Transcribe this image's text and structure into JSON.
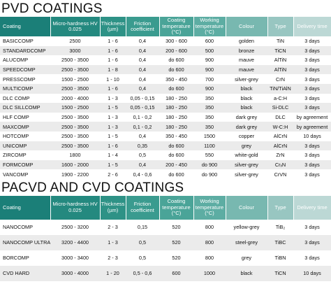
{
  "sections": [
    {
      "title": "PVD COATINGS",
      "header": [
        "Coating",
        "Micro-hardness HV 0.025",
        "Thickness (µm)",
        "Friction coefficient",
        "Coating temperature (°C)",
        "Working temperature (°C)",
        "Colour",
        "Type",
        "Delivery time"
      ],
      "rows": [
        [
          "BASICCOMP",
          "2500",
          "1 - 6",
          "0,4",
          "300 - 600",
          "600",
          "golden",
          "TiN",
          "3 days"
        ],
        [
          "STANDARDCOMP",
          "3000",
          "1 - 6",
          "0,4",
          "200 - 600",
          "500",
          "bronze",
          "TiCN",
          "3 days"
        ],
        [
          "ALUCOMP",
          "2500 - 3500",
          "1 - 6",
          "0,4",
          "do 600",
          "900",
          "mauve",
          "AlTiN",
          "3 days"
        ],
        [
          "SPEEDCOMP",
          "2500 - 3500",
          "1 - 8",
          "0,4",
          "do 600",
          "900",
          "mauve",
          "AlTiN",
          "3 days"
        ],
        [
          "PRESSCOMP",
          "1500 - 2500",
          "1 - 10",
          "0,4",
          "350 - 450",
          "700",
          "silver-grey",
          "CrN",
          "3 days"
        ],
        [
          "MULTICOMP",
          "2500 - 3500",
          "1 - 6",
          "0,4",
          "do 600",
          "900",
          "black",
          "TiN/TiAlN",
          "3 days"
        ],
        [
          "DLC COMP",
          "2000 - 4000",
          "1 - 3",
          "0,05 - 0,15",
          "180 - 250",
          "350",
          "black",
          "a-C:H",
          "3 days"
        ],
        [
          "DLC SILLCOMP",
          "1500 - 2500",
          "1 - 5",
          "0,05 - 0,15",
          "180 - 250",
          "350",
          "black",
          "Si-DLC",
          "3 days"
        ],
        [
          "HLF COMP",
          "2500 - 3500",
          "1 - 3",
          "0,1 - 0,2",
          "180 - 250",
          "350",
          "dark grey",
          "DLC",
          "by agreement"
        ],
        [
          "MAXCOMP",
          "2500 - 3500",
          "1 - 3",
          "0,1 - 0,2",
          "180 - 250",
          "350",
          "dark grey",
          "W-C:H",
          "by agreement"
        ],
        [
          "HOTCOMP",
          "2500 - 3500",
          "1 - 5",
          "0,4",
          "350 - 450",
          "1500",
          "copper",
          "AlCrN",
          "10 days"
        ],
        [
          "UNICOMP",
          "2500 - 3500",
          "1 - 6",
          "0,35",
          "do 600",
          "1100",
          "grey",
          "AlCrN",
          "3 days"
        ],
        [
          "ZIRCOMP",
          "1800",
          "1 - 4",
          "0,5",
          "do 600",
          "550",
          "white-gold",
          "ZrN",
          "3 days"
        ],
        [
          "FORMCOMP",
          "1600 - 2000",
          "1 - 5",
          "0,4",
          "200 - 450",
          "do 900",
          "silver-grey",
          "CrₓN",
          "3 days"
        ],
        [
          "VANCOMP",
          "1900 - 2200",
          "2 - 6",
          "0,4 - 0,6",
          "do 600",
          "do 900",
          "silver-grey",
          "CrVN",
          "3 days"
        ]
      ]
    },
    {
      "title": "PACVD AND CVD COATINGS",
      "header": [
        "Coating",
        "Micro-hardness HV 0.025",
        "Thickness (µm)",
        "Friction coefficient",
        "Coating temperature (°C)",
        "Working temperature (°C)",
        "Colour",
        "Type",
        "Delivery time"
      ],
      "rows": [
        [
          "NANOCOMP",
          "2500 - 3200",
          "2 - 3",
          "0,15",
          "520",
          "800",
          "yellow-grey",
          "TiB₂",
          "3 days"
        ],
        [
          "NANOCOMP ULTRA",
          "3200 - 4400",
          "1 - 3",
          "0,5",
          "520",
          "800",
          "steel-grey",
          "TiBC",
          "3 days"
        ],
        [
          "BORCOMP",
          "3000 - 3400",
          "2 - 3",
          "0,5",
          "520",
          "800",
          "grey",
          "TiBN",
          "3 days"
        ],
        [
          "CVD HARD",
          "3000 - 4000",
          "1 - 20",
          "0,5 - 0,6",
          "600",
          "1000",
          "black",
          "TiCN",
          "10 days"
        ]
      ]
    }
  ]
}
